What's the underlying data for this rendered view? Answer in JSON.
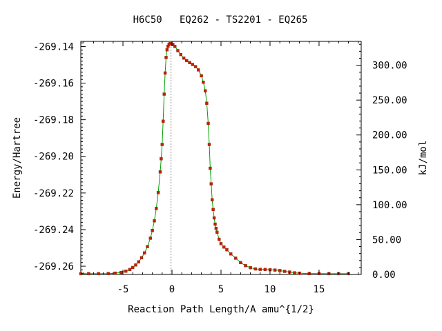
{
  "chart_data": {
    "type": "line",
    "title": "H6C50   EQ262 - TS2201 - EQ265",
    "xlabel": "Reaction Path Length/A amu^{1/2}",
    "ylabel": "Energy/Hartree",
    "y2label": "kJ/mol",
    "xlim": [
      -9.3,
      19.3
    ],
    "ylim": [
      -269.2645,
      -269.1372
    ],
    "y2lim": [
      0.0,
      334.2
    ],
    "grid": false,
    "x_ticks": [
      -5,
      0,
      5,
      10,
      15
    ],
    "x_tick_labels": [
      "-5",
      "0",
      "5",
      "10",
      "15"
    ],
    "y_ticks": [
      -269.14,
      -269.16,
      -269.18,
      -269.2,
      -269.22,
      -269.24,
      -269.26
    ],
    "y_tick_labels": [
      "-269.14",
      "-269.16",
      "-269.18",
      "-269.20",
      "-269.22",
      "-269.24",
      "-269.26"
    ],
    "y2_ticks": [
      0,
      50,
      100,
      150,
      200,
      250,
      300
    ],
    "y2_tick_labels": [
      "0.00",
      "50.00",
      "100.00",
      "150.00",
      "200.00",
      "250.00",
      "300.00"
    ],
    "ts_marker_x": -0.1,
    "colors": {
      "line": "#00a000",
      "marker": "#c81e00",
      "ts_line": "#888888"
    },
    "series": [
      {
        "x": [
          -9.3,
          -8.5,
          -7.5,
          -6.5,
          -5.8,
          -5.2,
          -4.7,
          -4.3,
          -4.0,
          -3.7,
          -3.4,
          -3.1,
          -2.8,
          -2.5,
          -2.2,
          -2.0,
          -1.8,
          -1.6,
          -1.4,
          -1.2,
          -1.1,
          -1.0,
          -0.9,
          -0.8,
          -0.7,
          -0.6,
          -0.5,
          -0.4,
          -0.3,
          -0.2,
          -0.1,
          0.1,
          0.3,
          0.6,
          0.9,
          1.2,
          1.5,
          1.8,
          2.1,
          2.4,
          2.7,
          3.0,
          3.2,
          3.4,
          3.55,
          3.7,
          3.8,
          3.9,
          4.0,
          4.1,
          4.2,
          4.3,
          4.4,
          4.5,
          4.6,
          4.8,
          5.0,
          5.3,
          5.6,
          6.0,
          6.5,
          7.0,
          7.5,
          8.0,
          8.5,
          9.0,
          9.5,
          10.0,
          10.5,
          11.0,
          11.5,
          12.0,
          12.5,
          13.0,
          14.0,
          15.0,
          16.0,
          17.0,
          18.0
        ],
        "values": [
          -269.2641,
          -269.2641,
          -269.2641,
          -269.264,
          -269.2638,
          -269.2634,
          -269.2627,
          -269.2618,
          -269.2607,
          -269.2593,
          -269.2576,
          -269.2554,
          -269.2527,
          -269.2493,
          -269.2447,
          -269.2405,
          -269.2352,
          -269.2285,
          -269.2198,
          -269.2085,
          -269.2013,
          -269.1935,
          -269.1808,
          -269.166,
          -269.1545,
          -269.146,
          -269.1418,
          -269.1399,
          -269.1388,
          -269.1384,
          -269.1384,
          -269.1389,
          -269.14,
          -269.1423,
          -269.1444,
          -269.1463,
          -269.1477,
          -269.1488,
          -269.1498,
          -269.151,
          -269.1528,
          -269.156,
          -269.1595,
          -269.1642,
          -269.171,
          -269.182,
          -269.1935,
          -269.2065,
          -269.215,
          -269.2237,
          -269.229,
          -269.2336,
          -269.237,
          -269.2393,
          -269.2414,
          -269.2453,
          -269.2477,
          -269.2495,
          -269.251,
          -269.2533,
          -269.2556,
          -269.258,
          -269.2597,
          -269.2608,
          -269.2615,
          -269.2617,
          -269.2618,
          -269.2619,
          -269.2621,
          -269.2624,
          -269.2628,
          -269.2632,
          -269.2636,
          -269.2638,
          -269.264,
          -269.264,
          -269.2641,
          -269.2641,
          -269.2641
        ]
      }
    ]
  }
}
